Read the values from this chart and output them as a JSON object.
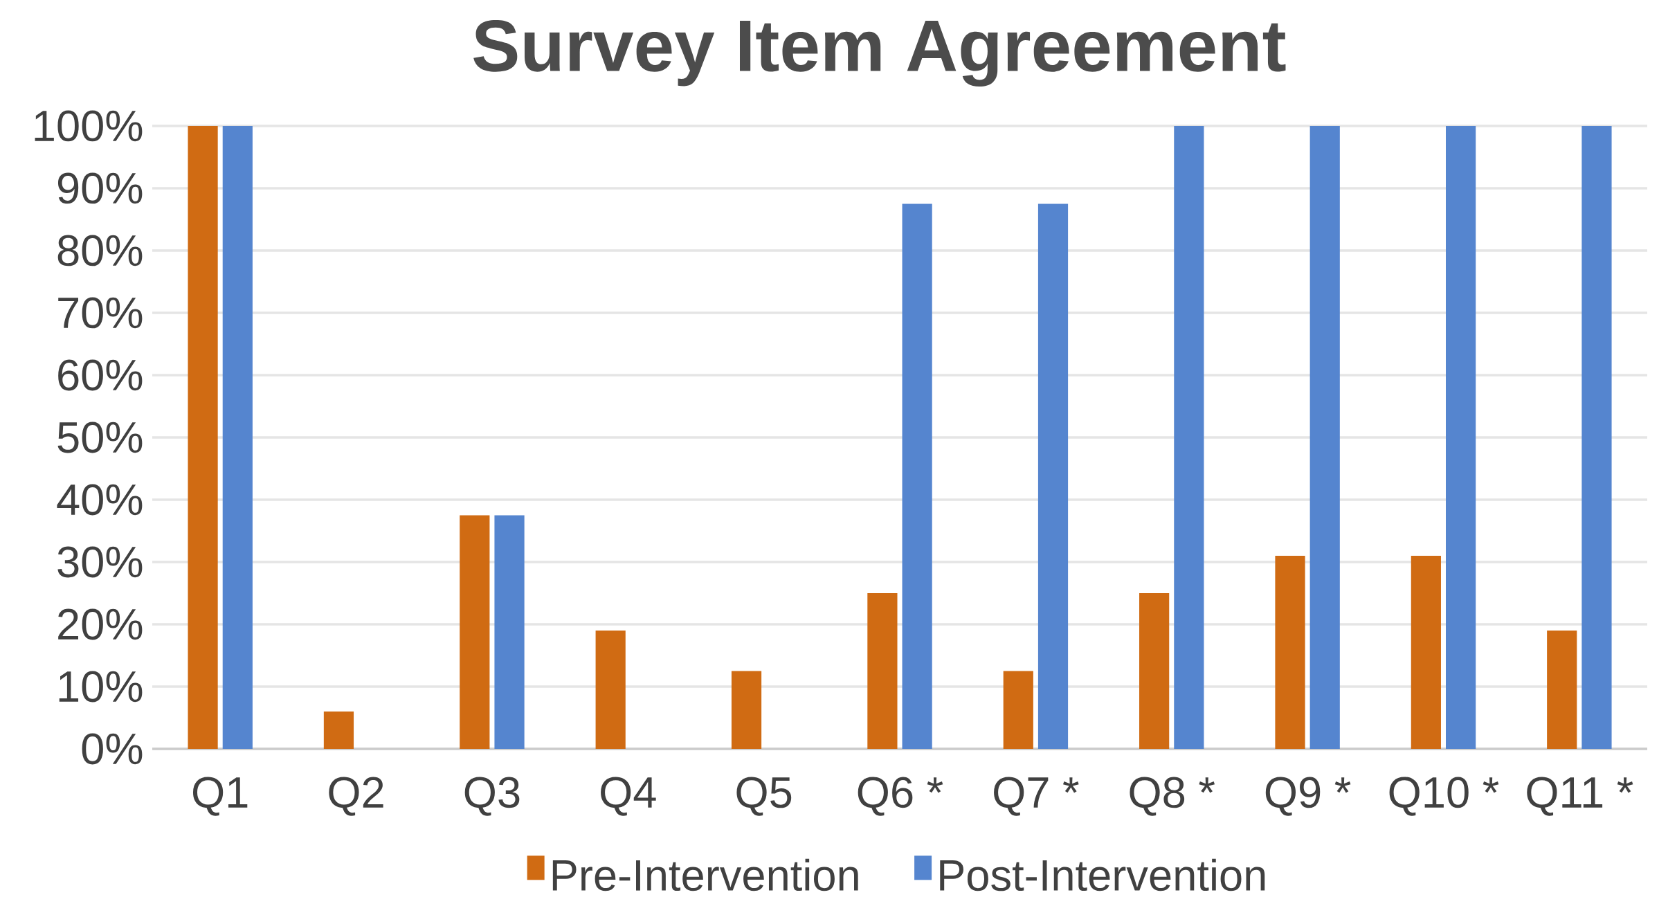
{
  "chart_data": {
    "type": "bar",
    "title": "Survey Item Agreement",
    "categories": [
      "Q1",
      "Q2",
      "Q3",
      "Q4",
      "Q5",
      "Q6 *",
      "Q7 *",
      "Q8 *",
      "Q9 *",
      "Q10 *",
      "Q11 *"
    ],
    "series": [
      {
        "name": "Pre-Intervention",
        "color": "#d06b13",
        "values": [
          100,
          6,
          37.5,
          19,
          12.5,
          25,
          12.5,
          25,
          31,
          31,
          19
        ]
      },
      {
        "name": "Post-Intervention",
        "color": "#5585cf",
        "values": [
          100,
          0,
          37.5,
          0,
          0,
          87.5,
          87.5,
          100,
          100,
          100,
          100
        ]
      }
    ],
    "ylim": [
      0,
      100
    ],
    "yticks": [
      {
        "value": 0,
        "label": "0%"
      },
      {
        "value": 10,
        "label": "10%"
      },
      {
        "value": 20,
        "label": "20%"
      },
      {
        "value": 30,
        "label": "30%"
      },
      {
        "value": 40,
        "label": "40%"
      },
      {
        "value": 50,
        "label": "50%"
      },
      {
        "value": 60,
        "label": "60%"
      },
      {
        "value": 70,
        "label": "70%"
      },
      {
        "value": 80,
        "label": "80%"
      },
      {
        "value": 90,
        "label": "90%"
      },
      {
        "value": 100,
        "label": "100%"
      }
    ],
    "grid": "y",
    "legend": "bottom"
  }
}
